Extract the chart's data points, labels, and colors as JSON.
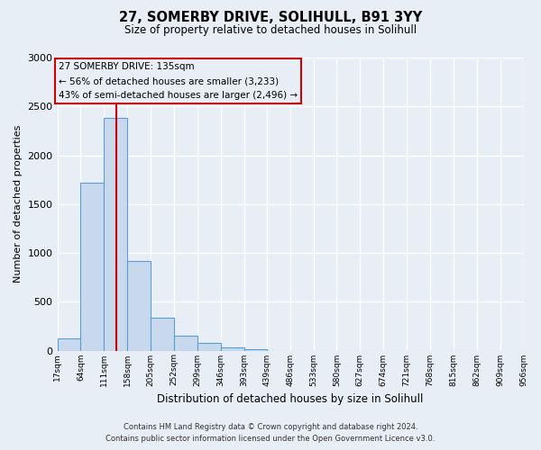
{
  "title": "27, SOMERBY DRIVE, SOLIHULL, B91 3YY",
  "subtitle": "Size of property relative to detached houses in Solihull",
  "xlabel": "Distribution of detached houses by size in Solihull",
  "ylabel": "Number of detached properties",
  "bin_edges": [
    17,
    64,
    111,
    158,
    205,
    252,
    299,
    346,
    393,
    439,
    486,
    533,
    580,
    627,
    674,
    721,
    768,
    815,
    862,
    909,
    956
  ],
  "bin_labels": [
    "17sqm",
    "64sqm",
    "111sqm",
    "158sqm",
    "205sqm",
    "252sqm",
    "299sqm",
    "346sqm",
    "393sqm",
    "439sqm",
    "486sqm",
    "533sqm",
    "580sqm",
    "627sqm",
    "674sqm",
    "721sqm",
    "768sqm",
    "815sqm",
    "862sqm",
    "909sqm",
    "956sqm"
  ],
  "counts": [
    120,
    1720,
    2380,
    920,
    340,
    155,
    75,
    30,
    10,
    0,
    0,
    0,
    0,
    0,
    0,
    0,
    0,
    0,
    0,
    0
  ],
  "bar_color": "#c9d9ed",
  "bar_edge_color": "#5a9fd4",
  "property_line_x": 135,
  "property_line_color": "#cc0000",
  "annotation_title": "27 SOMERBY DRIVE: 135sqm",
  "annotation_line1": "← 56% of detached houses are smaller (3,233)",
  "annotation_line2": "43% of semi-detached houses are larger (2,496) →",
  "annotation_box_color": "#cc0000",
  "ylim": [
    0,
    3000
  ],
  "yticks": [
    0,
    500,
    1000,
    1500,
    2000,
    2500,
    3000
  ],
  "footer_line1": "Contains HM Land Registry data © Crown copyright and database right 2024.",
  "footer_line2": "Contains public sector information licensed under the Open Government Licence v3.0.",
  "bg_color": "#e8eef5",
  "plot_bg_color": "#e8eef5",
  "grid_color": "#ffffff"
}
